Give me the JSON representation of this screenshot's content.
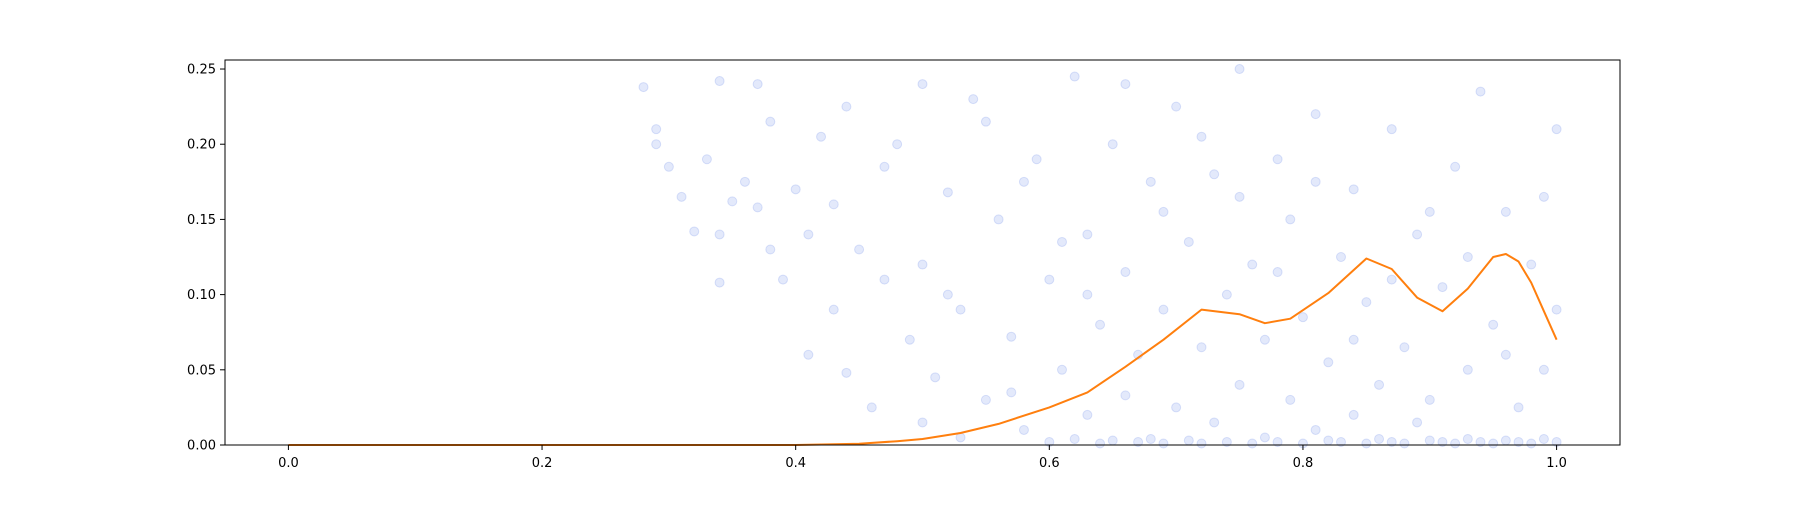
{
  "chart_data": {
    "type": "scatter",
    "title": "",
    "xlabel": "",
    "ylabel": "",
    "xlim": [
      -0.05,
      1.05
    ],
    "ylim": [
      0,
      0.256
    ],
    "x_ticks": [
      0.0,
      0.2,
      0.4,
      0.6,
      0.8,
      1.0
    ],
    "x_tick_labels": [
      "0.0",
      "0.2",
      "0.4",
      "0.6",
      "0.8",
      "1.0"
    ],
    "y_ticks": [
      0.0,
      0.05,
      0.1,
      0.15,
      0.2,
      0.25
    ],
    "y_tick_labels": [
      "0.00",
      "0.05",
      "0.10",
      "0.15",
      "0.20",
      "0.25"
    ],
    "grid": false,
    "colors": {
      "points": "#4169e1",
      "curve": "#ff7f0e",
      "axes": "#000000"
    },
    "series": [
      {
        "kind": "scatter",
        "marker_alpha": 0.15,
        "points": [
          [
            0.28,
            0.238
          ],
          [
            0.29,
            0.21
          ],
          [
            0.29,
            0.2
          ],
          [
            0.3,
            0.185
          ],
          [
            0.31,
            0.165
          ],
          [
            0.32,
            0.142
          ],
          [
            0.33,
            0.19
          ],
          [
            0.34,
            0.242
          ],
          [
            0.34,
            0.14
          ],
          [
            0.34,
            0.108
          ],
          [
            0.35,
            0.162
          ],
          [
            0.36,
            0.175
          ],
          [
            0.37,
            0.158
          ],
          [
            0.37,
            0.24
          ],
          [
            0.38,
            0.215
          ],
          [
            0.38,
            0.13
          ],
          [
            0.39,
            0.11
          ],
          [
            0.4,
            0.17
          ],
          [
            0.41,
            0.14
          ],
          [
            0.41,
            0.06
          ],
          [
            0.42,
            0.205
          ],
          [
            0.43,
            0.16
          ],
          [
            0.43,
            0.09
          ],
          [
            0.44,
            0.048
          ],
          [
            0.45,
            0.13
          ],
          [
            0.46,
            0.025
          ],
          [
            0.47,
            0.11
          ],
          [
            0.48,
            0.2
          ],
          [
            0.49,
            0.07
          ],
          [
            0.5,
            0.015
          ],
          [
            0.5,
            0.12
          ],
          [
            0.51,
            0.045
          ],
          [
            0.52,
            0.168
          ],
          [
            0.53,
            0.09
          ],
          [
            0.53,
            0.005
          ],
          [
            0.54,
            0.23
          ],
          [
            0.55,
            0.03
          ],
          [
            0.56,
            0.15
          ],
          [
            0.57,
            0.072
          ],
          [
            0.58,
            0.01
          ],
          [
            0.59,
            0.19
          ],
          [
            0.6,
            0.11
          ],
          [
            0.6,
            0.002
          ],
          [
            0.61,
            0.05
          ],
          [
            0.62,
            0.245
          ],
          [
            0.62,
            0.004
          ],
          [
            0.63,
            0.14
          ],
          [
            0.63,
            0.02
          ],
          [
            0.64,
            0.08
          ],
          [
            0.64,
            0.001
          ],
          [
            0.65,
            0.2
          ],
          [
            0.65,
            0.003
          ],
          [
            0.66,
            0.033
          ],
          [
            0.66,
            0.115
          ],
          [
            0.67,
            0.06
          ],
          [
            0.67,
            0.002
          ],
          [
            0.68,
            0.175
          ],
          [
            0.68,
            0.004
          ],
          [
            0.69,
            0.09
          ],
          [
            0.69,
            0.001
          ],
          [
            0.7,
            0.025
          ],
          [
            0.7,
            0.225
          ],
          [
            0.71,
            0.135
          ],
          [
            0.71,
            0.003
          ],
          [
            0.72,
            0.065
          ],
          [
            0.72,
            0.001
          ],
          [
            0.73,
            0.18
          ],
          [
            0.73,
            0.015
          ],
          [
            0.74,
            0.1
          ],
          [
            0.74,
            0.002
          ],
          [
            0.75,
            0.04
          ],
          [
            0.75,
            0.25
          ],
          [
            0.76,
            0.12
          ],
          [
            0.76,
            0.001
          ],
          [
            0.77,
            0.07
          ],
          [
            0.77,
            0.005
          ],
          [
            0.78,
            0.19
          ],
          [
            0.78,
            0.002
          ],
          [
            0.79,
            0.03
          ],
          [
            0.79,
            0.15
          ],
          [
            0.8,
            0.085
          ],
          [
            0.8,
            0.001
          ],
          [
            0.81,
            0.01
          ],
          [
            0.81,
            0.22
          ],
          [
            0.82,
            0.055
          ],
          [
            0.82,
            0.003
          ],
          [
            0.83,
            0.125
          ],
          [
            0.83,
            0.002
          ],
          [
            0.84,
            0.02
          ],
          [
            0.84,
            0.17
          ],
          [
            0.85,
            0.095
          ],
          [
            0.85,
            0.001
          ],
          [
            0.86,
            0.04
          ],
          [
            0.86,
            0.004
          ],
          [
            0.87,
            0.21
          ],
          [
            0.87,
            0.002
          ],
          [
            0.88,
            0.065
          ],
          [
            0.88,
            0.001
          ],
          [
            0.89,
            0.14
          ],
          [
            0.89,
            0.015
          ],
          [
            0.9,
            0.03
          ],
          [
            0.9,
            0.003
          ],
          [
            0.91,
            0.105
          ],
          [
            0.91,
            0.002
          ],
          [
            0.92,
            0.185
          ],
          [
            0.92,
            0.001
          ],
          [
            0.93,
            0.05
          ],
          [
            0.93,
            0.004
          ],
          [
            0.94,
            0.235
          ],
          [
            0.94,
            0.002
          ],
          [
            0.95,
            0.08
          ],
          [
            0.95,
            0.001
          ],
          [
            0.96,
            0.155
          ],
          [
            0.96,
            0.003
          ],
          [
            0.97,
            0.025
          ],
          [
            0.97,
            0.002
          ],
          [
            0.98,
            0.12
          ],
          [
            0.98,
            0.001
          ],
          [
            0.99,
            0.05
          ],
          [
            0.99,
            0.004
          ],
          [
            1.0,
            0.21
          ],
          [
            1.0,
            0.002
          ],
          [
            1.0,
            0.09
          ],
          [
            0.55,
            0.215
          ],
          [
            0.58,
            0.175
          ],
          [
            0.61,
            0.135
          ],
          [
            0.63,
            0.1
          ],
          [
            0.66,
            0.24
          ],
          [
            0.69,
            0.155
          ],
          [
            0.72,
            0.205
          ],
          [
            0.75,
            0.165
          ],
          [
            0.78,
            0.115
          ],
          [
            0.81,
            0.175
          ],
          [
            0.84,
            0.07
          ],
          [
            0.87,
            0.11
          ],
          [
            0.9,
            0.155
          ],
          [
            0.93,
            0.125
          ],
          [
            0.96,
            0.06
          ],
          [
            0.99,
            0.165
          ],
          [
            0.5,
            0.24
          ],
          [
            0.47,
            0.185
          ],
          [
            0.44,
            0.225
          ],
          [
            0.52,
            0.1
          ],
          [
            0.57,
            0.035
          ]
        ]
      },
      {
        "kind": "line",
        "points": [
          [
            0.0,
            0.0
          ],
          [
            0.1,
            0.0
          ],
          [
            0.2,
            0.0
          ],
          [
            0.3,
            0.0
          ],
          [
            0.4,
            0.0
          ],
          [
            0.45,
            0.0008
          ],
          [
            0.48,
            0.0025
          ],
          [
            0.5,
            0.004
          ],
          [
            0.53,
            0.008
          ],
          [
            0.56,
            0.014
          ],
          [
            0.6,
            0.025
          ],
          [
            0.63,
            0.035
          ],
          [
            0.66,
            0.052
          ],
          [
            0.69,
            0.07
          ],
          [
            0.72,
            0.09
          ],
          [
            0.75,
            0.087
          ],
          [
            0.77,
            0.081
          ],
          [
            0.79,
            0.084
          ],
          [
            0.82,
            0.101
          ],
          [
            0.85,
            0.124
          ],
          [
            0.87,
            0.117
          ],
          [
            0.89,
            0.098
          ],
          [
            0.91,
            0.089
          ],
          [
            0.93,
            0.104
          ],
          [
            0.95,
            0.125
          ],
          [
            0.96,
            0.127
          ],
          [
            0.97,
            0.122
          ],
          [
            0.98,
            0.108
          ],
          [
            0.99,
            0.089
          ],
          [
            1.0,
            0.07
          ]
        ]
      }
    ]
  }
}
